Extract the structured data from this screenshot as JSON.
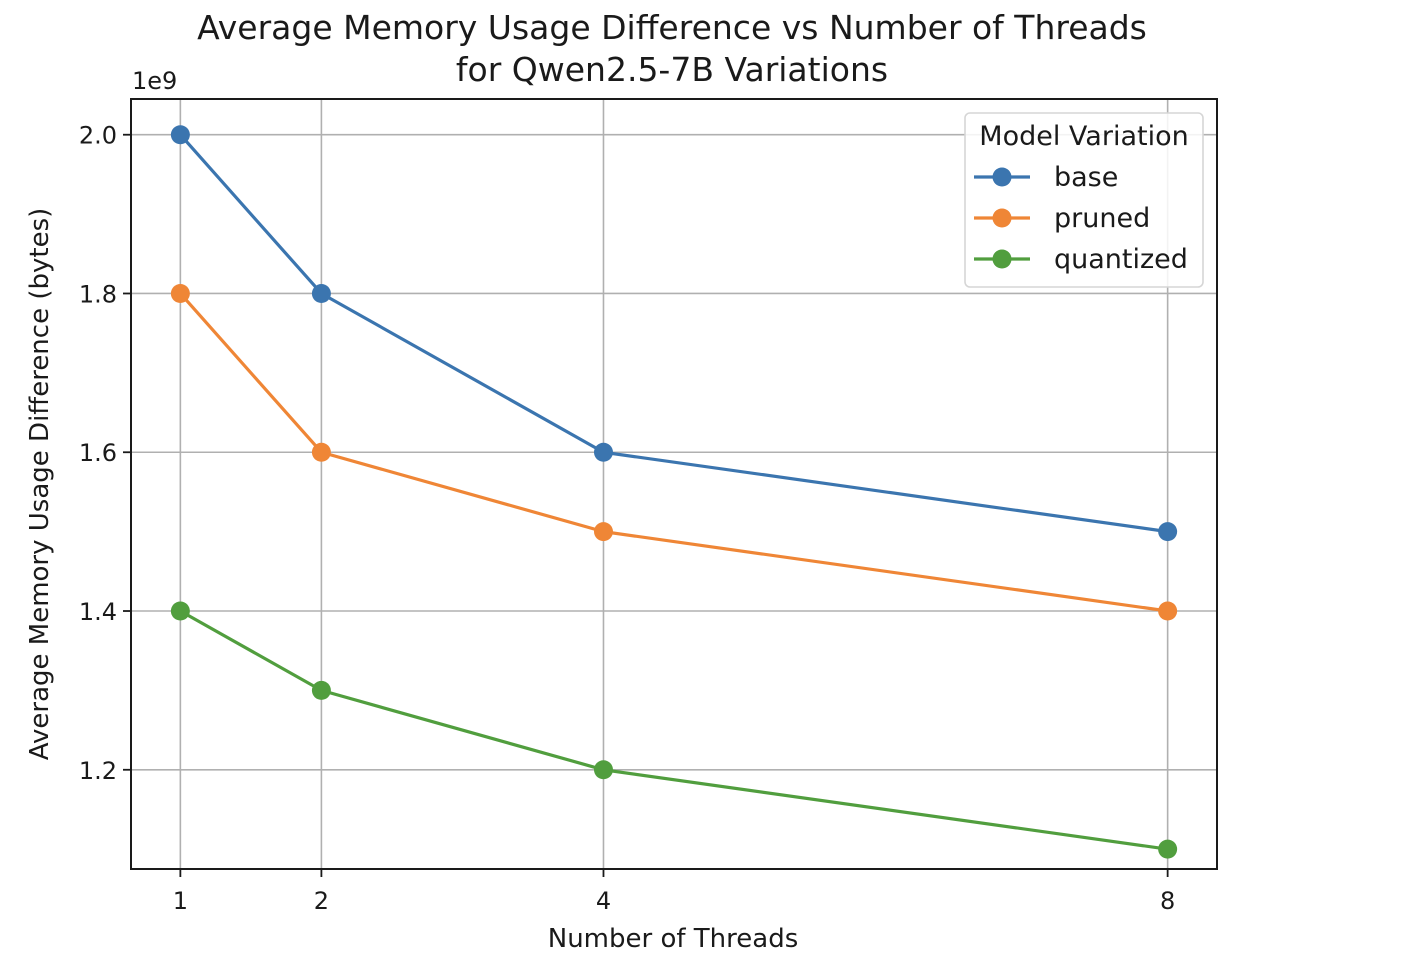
{
  "chart_data": {
    "type": "line",
    "title_lines": [
      "Average Memory Usage Difference vs Number of Threads",
      "for Qwen2.5-7B Variations"
    ],
    "xlabel": "Number of Threads",
    "ylabel": "Average Memory Usage Difference (bytes)",
    "y_offset_text": "1e9",
    "x": [
      1,
      2,
      4,
      8
    ],
    "x_ticks": [
      1,
      2,
      4,
      8
    ],
    "x_tick_labels": [
      "1",
      "2",
      "4",
      "8"
    ],
    "xlim": [
      0.65,
      8.35
    ],
    "ylim": [
      1.075,
      2.045
    ],
    "y_ticks": [
      1.2,
      1.4,
      1.6,
      1.8,
      2.0
    ],
    "y_tick_labels": [
      "1.2",
      "1.4",
      "1.6",
      "1.8",
      "2.0"
    ],
    "y_scale_note": "values shown in units of 1e9 bytes",
    "grid": true,
    "legend": {
      "title": "Model Variation",
      "placement": "top-right"
    },
    "series": [
      {
        "name": "base",
        "color": "#3b75af",
        "values": [
          2.0,
          1.8,
          1.6,
          1.5
        ]
      },
      {
        "name": "pruned",
        "color": "#ef8636",
        "values": [
          1.8,
          1.6,
          1.5,
          1.4
        ]
      },
      {
        "name": "quantized",
        "color": "#519e3e",
        "values": [
          1.4,
          1.3,
          1.2,
          1.1
        ]
      }
    ]
  }
}
